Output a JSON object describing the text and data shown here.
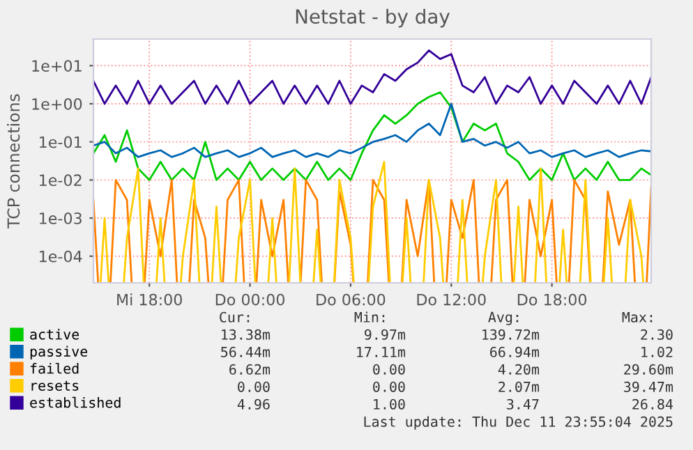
{
  "chart_data": {
    "type": "line",
    "title": "Netstat - by day",
    "ylabel": "TCP connections",
    "log": "y",
    "grid": true,
    "legend": "bottom",
    "marker": "none",
    "line_style": "solid",
    "x": [
      "2025-12-10T14:40",
      "2025-12-10T15:20",
      "2025-12-10T16:00",
      "2025-12-10T16:40",
      "2025-12-10T17:20",
      "2025-12-10T18:00",
      "2025-12-10T18:40",
      "2025-12-10T19:20",
      "2025-12-10T20:00",
      "2025-12-10T20:40",
      "2025-12-10T21:20",
      "2025-12-10T22:00",
      "2025-12-10T22:40",
      "2025-12-10T23:20",
      "2025-12-11T00:00",
      "2025-12-11T00:40",
      "2025-12-11T01:20",
      "2025-12-11T02:00",
      "2025-12-11T02:40",
      "2025-12-11T03:20",
      "2025-12-11T04:00",
      "2025-12-11T04:40",
      "2025-12-11T05:20",
      "2025-12-11T06:00",
      "2025-12-11T06:40",
      "2025-12-11T07:20",
      "2025-12-11T08:00",
      "2025-12-11T08:40",
      "2025-12-11T09:20",
      "2025-12-11T10:00",
      "2025-12-11T10:40",
      "2025-12-11T11:20",
      "2025-12-11T12:00",
      "2025-12-11T12:40",
      "2025-12-11T13:20",
      "2025-12-11T14:00",
      "2025-12-11T14:40",
      "2025-12-11T15:20",
      "2025-12-11T16:00",
      "2025-12-11T16:40",
      "2025-12-11T17:20",
      "2025-12-11T18:00",
      "2025-12-11T18:40",
      "2025-12-11T19:20",
      "2025-12-11T20:00",
      "2025-12-11T20:40",
      "2025-12-11T21:20",
      "2025-12-11T22:00",
      "2025-12-11T22:40",
      "2025-12-11T23:20",
      "2025-12-11T23:55"
    ],
    "series": [
      {
        "name": "active",
        "color": "#00cc00",
        "values": [
          0.05,
          0.15,
          0.03,
          0.2,
          0.02,
          0.01,
          0.03,
          0.01,
          0.02,
          0.01,
          0.1,
          0.01,
          0.02,
          0.01,
          0.03,
          0.01,
          0.02,
          0.01,
          0.02,
          0.01,
          0.03,
          0.01,
          0.02,
          0.01,
          0.05,
          0.2,
          0.5,
          0.3,
          0.5,
          1.0,
          1.5,
          2.0,
          0.8,
          0.1,
          0.3,
          0.2,
          0.3,
          0.05,
          0.03,
          0.01,
          0.02,
          0.01,
          0.05,
          0.01,
          0.02,
          0.01,
          0.03,
          0.01,
          0.01,
          0.02,
          0.01338
        ]
      },
      {
        "name": "passive",
        "color": "#0066b3",
        "values": [
          0.08,
          0.1,
          0.05,
          0.07,
          0.04,
          0.05,
          0.06,
          0.04,
          0.05,
          0.07,
          0.04,
          0.05,
          0.06,
          0.04,
          0.05,
          0.07,
          0.04,
          0.05,
          0.06,
          0.04,
          0.05,
          0.04,
          0.06,
          0.05,
          0.07,
          0.1,
          0.12,
          0.15,
          0.1,
          0.2,
          0.3,
          0.15,
          1.0,
          0.1,
          0.12,
          0.08,
          0.1,
          0.07,
          0.1,
          0.05,
          0.06,
          0.04,
          0.05,
          0.06,
          0.04,
          0.05,
          0.06,
          0.04,
          0.05,
          0.06,
          0.05644
        ]
      },
      {
        "name": "failed",
        "color": "#ff8000",
        "values": [
          0.003,
          null,
          0.01,
          0.003,
          null,
          0.003,
          0.0001,
          0.01,
          null,
          0.003,
          0.0003,
          null,
          0.003,
          0.01,
          null,
          0.003,
          0.0001,
          0.003,
          null,
          0.01,
          0.003,
          null,
          0.005,
          0.0002,
          null,
          0.01,
          0.003,
          null,
          0.003,
          0.0001,
          0.01,
          null,
          0.003,
          0.0003,
          0.01,
          null,
          0.003,
          0.01,
          null,
          0.003,
          0.0001,
          0.003,
          null,
          0.01,
          0.003,
          null,
          0.005,
          0.0002,
          0.003,
          null,
          0.00662
        ]
      },
      {
        "name": "resets",
        "color": "#ffcc00",
        "values": [
          null,
          0.001,
          null,
          0.0003,
          0.02,
          null,
          0.001,
          null,
          0.0001,
          0.01,
          null,
          0.002,
          null,
          0.0003,
          0.01,
          null,
          0.001,
          null,
          0.02,
          null,
          0.0005,
          null,
          0.01,
          0.0003,
          null,
          0.002,
          0.03,
          null,
          0.001,
          null,
          0.01,
          0.0003,
          null,
          0.003,
          null,
          0.0001,
          0.01,
          null,
          0.002,
          null,
          0.02,
          null,
          0.0005,
          null,
          0.01,
          null,
          0.001,
          null,
          0.003,
          0.0001,
          null
        ]
      },
      {
        "name": "established",
        "color": "#330099",
        "values": [
          4,
          1,
          3,
          1,
          4,
          1,
          3,
          1,
          2,
          4,
          1,
          3,
          1,
          4,
          1,
          2,
          4,
          1,
          3,
          1,
          3,
          1,
          4,
          1,
          3,
          2,
          6,
          4,
          8,
          12,
          25,
          15,
          20,
          3,
          2,
          5,
          1,
          3,
          2,
          5,
          1,
          3,
          1,
          4,
          2,
          1,
          3,
          1,
          4,
          1,
          4.96
        ]
      }
    ],
    "ylim": [
      2e-05,
      50
    ],
    "yticks": [
      {
        "value": 0.0001,
        "label": "1e-04"
      },
      {
        "value": 0.001,
        "label": "1e-03"
      },
      {
        "value": 0.01,
        "label": "1e-02"
      },
      {
        "value": 0.1,
        "label": "1e-01"
      },
      {
        "value": 1,
        "label": "1e+00"
      },
      {
        "value": 10,
        "label": "1e+01"
      }
    ],
    "xlim": [
      "2025-12-10T14:40",
      "2025-12-11T23:55"
    ],
    "xticks": [
      {
        "value": "2025-12-10T18:00",
        "label": "Mi 18:00"
      },
      {
        "value": "2025-12-11T00:00",
        "label": "Do 00:00"
      },
      {
        "value": "2025-12-11T06:00",
        "label": "Do 06:00"
      },
      {
        "value": "2025-12-11T12:00",
        "label": "Do 12:00"
      },
      {
        "value": "2025-12-11T18:00",
        "label": "Do 18:00"
      }
    ],
    "annotations": [
      "Cur:",
      "Min:",
      "Avg:",
      "Max:",
      "13.38m",
      "9.97m",
      "139.72m",
      "2.30",
      "56.44m",
      "17.11m",
      "66.94m",
      "1.02",
      "6.62m",
      "0.00",
      "4.20m",
      "29.60m",
      "0.00",
      "0.00",
      "2.07m",
      "39.47m",
      "4.96",
      "1.00",
      "3.47",
      "26.84",
      "Last update: Thu Dec 11 23:55:04 2025"
    ]
  }
}
